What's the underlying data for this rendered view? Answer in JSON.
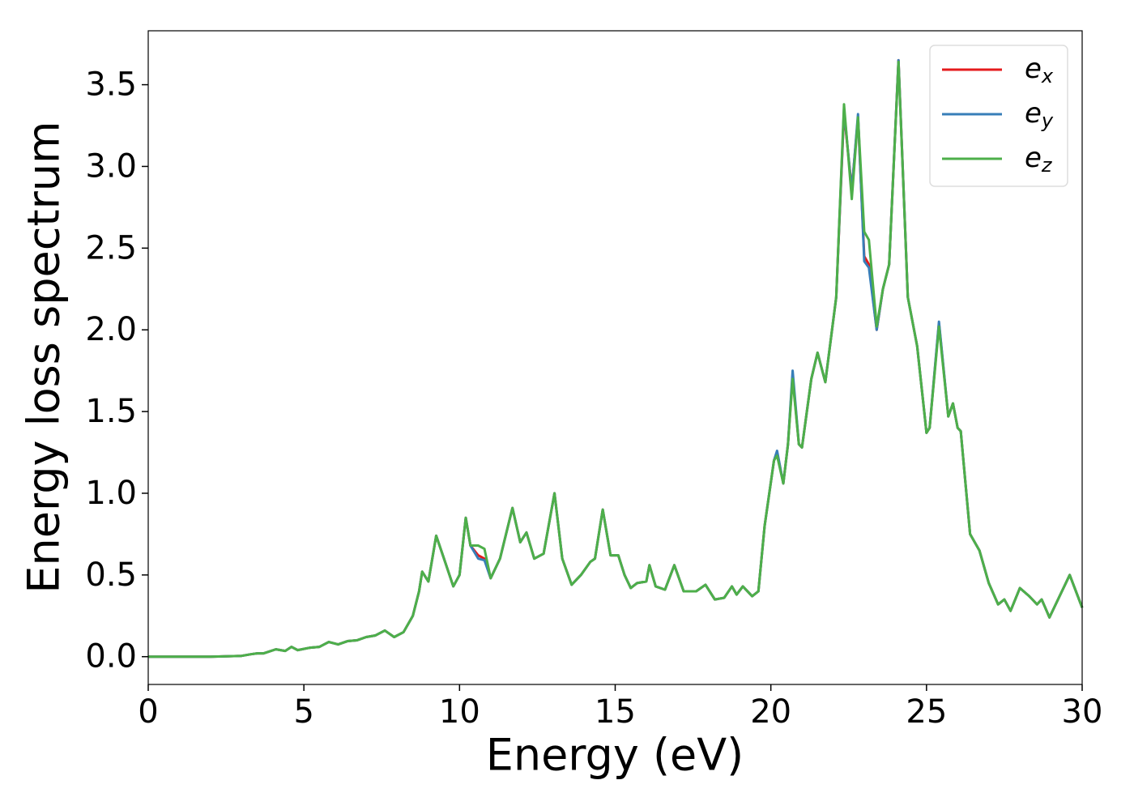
{
  "chart_data": {
    "type": "line",
    "xlabel": "Energy (eV)",
    "ylabel": "Energy loss spectrum",
    "x": [
      0,
      1,
      2,
      3,
      3.3,
      3.5,
      3.7,
      4.1,
      4.4,
      4.6,
      4.8,
      5.2,
      5.5,
      5.8,
      6.1,
      6.4,
      6.7,
      7.0,
      7.3,
      7.6,
      7.9,
      8.2,
      8.5,
      8.7,
      8.8,
      9.0,
      9.25,
      9.5,
      9.8,
      10.0,
      10.2,
      10.35,
      10.6,
      10.8,
      11.0,
      11.3,
      11.7,
      11.95,
      12.15,
      12.4,
      12.7,
      13.05,
      13.3,
      13.6,
      13.9,
      14.2,
      14.35,
      14.6,
      14.85,
      15.1,
      15.3,
      15.5,
      15.7,
      16.0,
      16.1,
      16.3,
      16.6,
      16.9,
      17.2,
      17.6,
      17.9,
      18.2,
      18.5,
      18.75,
      18.9,
      19.1,
      19.4,
      19.6,
      19.8,
      20.1,
      20.2,
      20.4,
      20.55,
      20.7,
      20.9,
      21.0,
      21.3,
      21.5,
      21.75,
      22.1,
      22.35,
      22.6,
      22.8,
      23.0,
      23.15,
      23.4,
      23.6,
      23.8,
      24.1,
      24.4,
      24.7,
      25.0,
      25.1,
      25.4,
      25.7,
      25.85,
      26.0,
      26.1,
      26.4,
      26.7,
      27.0,
      27.3,
      27.5,
      27.7,
      28.0,
      28.3,
      28.55,
      28.7,
      28.95,
      29.3,
      29.6,
      30.0
    ],
    "series": [
      {
        "name": "ex",
        "color": "#e41a1c",
        "values": [
          0,
          0,
          0,
          0.005,
          0.015,
          0.02,
          0.02,
          0.045,
          0.035,
          0.06,
          0.04,
          0.055,
          0.06,
          0.09,
          0.075,
          0.095,
          0.1,
          0.12,
          0.13,
          0.16,
          0.12,
          0.15,
          0.25,
          0.4,
          0.52,
          0.46,
          0.74,
          0.6,
          0.43,
          0.5,
          0.85,
          0.68,
          0.62,
          0.6,
          0.48,
          0.6,
          0.91,
          0.7,
          0.76,
          0.6,
          0.63,
          1.0,
          0.6,
          0.44,
          0.5,
          0.58,
          0.6,
          0.9,
          0.62,
          0.62,
          0.5,
          0.42,
          0.45,
          0.46,
          0.56,
          0.43,
          0.41,
          0.56,
          0.4,
          0.4,
          0.44,
          0.35,
          0.36,
          0.43,
          0.38,
          0.43,
          0.37,
          0.4,
          0.8,
          1.2,
          1.25,
          1.06,
          1.3,
          1.72,
          1.3,
          1.28,
          1.7,
          1.86,
          1.68,
          2.2,
          3.33,
          2.86,
          3.3,
          2.45,
          2.4,
          2.0,
          2.25,
          2.4,
          3.65,
          2.2,
          1.9,
          1.37,
          1.4,
          2.04,
          1.47,
          1.55,
          1.4,
          1.38,
          0.75,
          0.65,
          0.45,
          0.32,
          0.35,
          0.28,
          0.42,
          0.37,
          0.32,
          0.35,
          0.24,
          0.38,
          0.5,
          0.3
        ]
      },
      {
        "name": "ey",
        "color": "#377eb8",
        "values": [
          0,
          0,
          0,
          0.005,
          0.015,
          0.02,
          0.02,
          0.045,
          0.035,
          0.06,
          0.04,
          0.055,
          0.06,
          0.09,
          0.075,
          0.095,
          0.1,
          0.12,
          0.13,
          0.16,
          0.12,
          0.15,
          0.25,
          0.4,
          0.52,
          0.46,
          0.74,
          0.6,
          0.43,
          0.5,
          0.85,
          0.68,
          0.6,
          0.59,
          0.48,
          0.6,
          0.91,
          0.7,
          0.76,
          0.6,
          0.63,
          1.0,
          0.6,
          0.44,
          0.5,
          0.58,
          0.6,
          0.9,
          0.62,
          0.62,
          0.5,
          0.42,
          0.45,
          0.46,
          0.56,
          0.43,
          0.41,
          0.56,
          0.4,
          0.4,
          0.44,
          0.35,
          0.36,
          0.43,
          0.38,
          0.43,
          0.37,
          0.4,
          0.8,
          1.2,
          1.26,
          1.06,
          1.3,
          1.75,
          1.3,
          1.28,
          1.7,
          1.86,
          1.68,
          2.2,
          3.35,
          2.85,
          3.32,
          2.42,
          2.38,
          2.0,
          2.25,
          2.4,
          3.65,
          2.2,
          1.9,
          1.37,
          1.4,
          2.05,
          1.47,
          1.55,
          1.4,
          1.38,
          0.75,
          0.65,
          0.45,
          0.32,
          0.35,
          0.28,
          0.42,
          0.37,
          0.32,
          0.35,
          0.24,
          0.38,
          0.5,
          0.3
        ]
      },
      {
        "name": "ez",
        "color": "#4daf4a",
        "values": [
          0,
          0,
          0,
          0.005,
          0.015,
          0.02,
          0.02,
          0.045,
          0.035,
          0.06,
          0.04,
          0.055,
          0.06,
          0.09,
          0.075,
          0.095,
          0.1,
          0.12,
          0.13,
          0.16,
          0.12,
          0.15,
          0.25,
          0.4,
          0.52,
          0.46,
          0.74,
          0.6,
          0.43,
          0.5,
          0.85,
          0.68,
          0.68,
          0.66,
          0.48,
          0.6,
          0.91,
          0.7,
          0.76,
          0.6,
          0.63,
          1.0,
          0.6,
          0.44,
          0.5,
          0.58,
          0.6,
          0.9,
          0.62,
          0.62,
          0.5,
          0.42,
          0.45,
          0.46,
          0.56,
          0.43,
          0.41,
          0.56,
          0.4,
          0.4,
          0.44,
          0.35,
          0.36,
          0.43,
          0.38,
          0.43,
          0.37,
          0.4,
          0.8,
          1.2,
          1.23,
          1.06,
          1.3,
          1.7,
          1.3,
          1.28,
          1.7,
          1.86,
          1.68,
          2.2,
          3.38,
          2.8,
          3.3,
          2.6,
          2.55,
          2.02,
          2.25,
          2.4,
          3.64,
          2.2,
          1.9,
          1.37,
          1.4,
          2.02,
          1.47,
          1.55,
          1.4,
          1.38,
          0.75,
          0.65,
          0.45,
          0.32,
          0.35,
          0.28,
          0.42,
          0.37,
          0.32,
          0.35,
          0.24,
          0.38,
          0.5,
          0.3
        ]
      }
    ],
    "xlim": [
      0,
      30
    ],
    "xticks": [
      0,
      5,
      10,
      15,
      20,
      25,
      30
    ],
    "ylim": [
      -0.17,
      3.83
    ],
    "yticks": [
      {
        "value": 0,
        "label": "0.0"
      },
      0.5,
      {
        "value": 1,
        "label": "1.0"
      },
      1.5,
      {
        "value": 2,
        "label": "2.0"
      },
      2.5,
      {
        "value": 3,
        "label": "3.0"
      },
      3.5
    ],
    "grid": false,
    "legend": "upper right"
  }
}
